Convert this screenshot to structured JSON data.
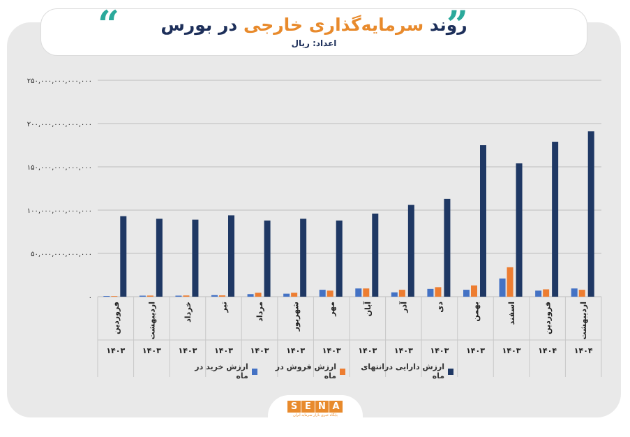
{
  "header": {
    "title_prefix": "روند ",
    "title_accent": "سرمایه‌گذاری خارجی",
    "title_suffix": " در بورس",
    "unit": "اعداد: ریال",
    "quote_left": "“",
    "quote_right": "”"
  },
  "logo": {
    "letters": [
      "S",
      "E",
      "N",
      "A"
    ],
    "subtitle": "پایگاه خبری بازار سرمایه ایران"
  },
  "colors": {
    "purchase": "#4472c4",
    "sale": "#ed7d31",
    "assets": "#1f3864",
    "grid": "#bdbdbd",
    "accent": "#e88a2c",
    "quote": "#2ba99b"
  },
  "chart_data": {
    "type": "bar",
    "title": "روند سرمایه‌گذاری خارجی در بورس",
    "ylim": [
      0,
      250000000000000
    ],
    "yticks": [
      0,
      50000000000000,
      100000000000000,
      150000000000000,
      200000000000000,
      250000000000000
    ],
    "ytick_labels": [
      "۰",
      "۵۰,۰۰۰,۰۰۰,۰۰۰,۰۰۰",
      "۱۰۰,۰۰۰,۰۰۰,۰۰۰,۰۰۰",
      "۱۵۰,۰۰۰,۰۰۰,۰۰۰,۰۰۰",
      "۲۰۰,۰۰۰,۰۰۰,۰۰۰,۰۰۰",
      "۲۵۰,۰۰۰,۰۰۰,۰۰۰,۰۰۰"
    ],
    "grid": true,
    "legend_position": "bottom",
    "categories": [
      "فروردین",
      "اردیبهشت",
      "خرداد",
      "تیر",
      "مرداد",
      "شهریور",
      "مهر",
      "آبان",
      "آذر",
      "دی",
      "بهمن",
      "اسفند",
      "فروردین",
      "اردیبهشت"
    ],
    "years": [
      "۱۴۰۳",
      "۱۴۰۳",
      "۱۴۰۳",
      "۱۴۰۳",
      "۱۴۰۳",
      "۱۴۰۳",
      "۱۴۰۳",
      "۱۴۰۳",
      "۱۴۰۳",
      "۱۴۰۳",
      "۱۴۰۳",
      "۱۴۰۳",
      "۱۴۰۴",
      "۱۴۰۴"
    ],
    "series": [
      {
        "name": "ارزش خرید در ماه",
        "color": "#4472c4",
        "values": [
          800000000000,
          1200000000000,
          1200000000000,
          1800000000000,
          3000000000000,
          3500000000000,
          8000000000000,
          9500000000000,
          5000000000000,
          9000000000000,
          8000000000000,
          21000000000000,
          7000000000000,
          9500000000000
        ]
      },
      {
        "name": "ارزش فروش در ماه",
        "color": "#ed7d31",
        "values": [
          700000000000,
          1300000000000,
          1400000000000,
          1500000000000,
          4500000000000,
          4500000000000,
          7000000000000,
          9500000000000,
          8000000000000,
          11000000000000,
          13000000000000,
          34000000000000,
          8500000000000,
          8000000000000
        ]
      },
      {
        "name": "ارزش دارایی درانتهای ماه",
        "color": "#1f3864",
        "values": [
          93000000000000,
          90000000000000,
          89000000000000,
          94000000000000,
          88000000000000,
          90000000000000,
          88000000000000,
          96000000000000,
          106000000000000,
          113000000000000,
          175000000000000,
          154000000000000,
          179000000000000,
          191000000000000
        ]
      }
    ]
  }
}
